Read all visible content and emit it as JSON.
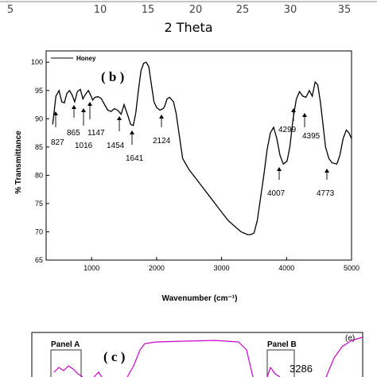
{
  "top_panel": {
    "ticks": [
      "5",
      "10",
      "15",
      "20",
      "25",
      "30",
      "35"
    ],
    "xlabel": "2 Theta"
  },
  "chart_data": {
    "type": "line",
    "panel_tag": "( b )",
    "xlabel": "Wavenumber (cm⁻¹)",
    "ylabel": "% Transmittance",
    "xlim": [
      300,
      5000
    ],
    "ylim": [
      65,
      102
    ],
    "xticks": [
      1000,
      2000,
      3000,
      4000,
      5000
    ],
    "yticks": [
      65,
      70,
      75,
      80,
      85,
      90,
      95,
      100
    ],
    "legend": {
      "label": "Honey",
      "placement": "top-left"
    },
    "series": [
      {
        "name": "Honey",
        "color": "#000000",
        "x": [
          400,
          450,
          500,
          540,
          580,
          620,
          660,
          700,
          740,
          780,
          827,
          865,
          900,
          950,
          1000,
          1016,
          1050,
          1100,
          1147,
          1200,
          1250,
          1300,
          1350,
          1400,
          1454,
          1500,
          1560,
          1600,
          1641,
          1680,
          1720,
          1760,
          1800,
          1840,
          1880,
          1920,
          1960,
          2000,
          2050,
          2100,
          2124,
          2160,
          2200,
          2260,
          2300,
          2350,
          2400,
          2500,
          2600,
          2700,
          2800,
          2900,
          3000,
          3100,
          3200,
          3300,
          3400,
          3450,
          3500,
          3550,
          3600,
          3650,
          3700,
          3750,
          3800,
          3850,
          3900,
          3950,
          4007,
          4050,
          4100,
          4150,
          4200,
          4250,
          4299,
          4350,
          4395,
          4440,
          4480,
          4520,
          4560,
          4600,
          4650,
          4700,
          4773,
          4820,
          4870,
          4920,
          4960,
          5000
        ],
        "y": [
          89,
          94,
          95,
          93,
          92.8,
          94.5,
          95,
          94.2,
          93,
          94.8,
          95.2,
          93.5,
          94.2,
          95,
          93.8,
          93.3,
          93.8,
          93.9,
          93.6,
          92.5,
          91.5,
          91.3,
          91.8,
          91.5,
          90.8,
          92.5,
          90.5,
          89,
          88.8,
          91,
          95,
          98.5,
          99.8,
          100,
          99.2,
          96,
          93,
          92,
          91.5,
          91.8,
          92.2,
          93.5,
          93.8,
          93,
          91,
          87,
          83,
          81,
          79.5,
          78,
          76.5,
          75,
          73.5,
          72,
          71,
          70,
          69.5,
          69.5,
          69.8,
          72,
          76,
          80,
          84.5,
          87.5,
          88.5,
          86.5,
          83.5,
          82,
          82.5,
          85,
          90,
          93.5,
          94.8,
          94,
          93.8,
          95,
          94,
          96.5,
          96,
          93,
          89,
          85,
          83,
          82.2,
          82,
          83.5,
          86.5,
          88,
          87.5,
          86.5
        ]
      }
    ],
    "annotations": [
      {
        "label": "827",
        "x": 400
      },
      {
        "label": "865",
        "x": 650
      },
      {
        "label": "1016",
        "x": 850
      },
      {
        "label": "1147",
        "x": 1000
      },
      {
        "label": "1454",
        "x": 1450
      },
      {
        "label": "1641",
        "x": 1650
      },
      {
        "label": "2124",
        "x": 2124
      },
      {
        "label": "4007",
        "x": 4007
      },
      {
        "label": "4299",
        "x": 4299
      },
      {
        "label": "4395",
        "x": 4395
      },
      {
        "label": "4773",
        "x": 4773
      }
    ]
  },
  "bottom_panel": {
    "panel_tag": "( c )",
    "panel_a": "Panel A",
    "panel_b": "Panel B",
    "corner_label": "(e)",
    "peak_label": "3286",
    "line_color": "#cc00cc"
  }
}
